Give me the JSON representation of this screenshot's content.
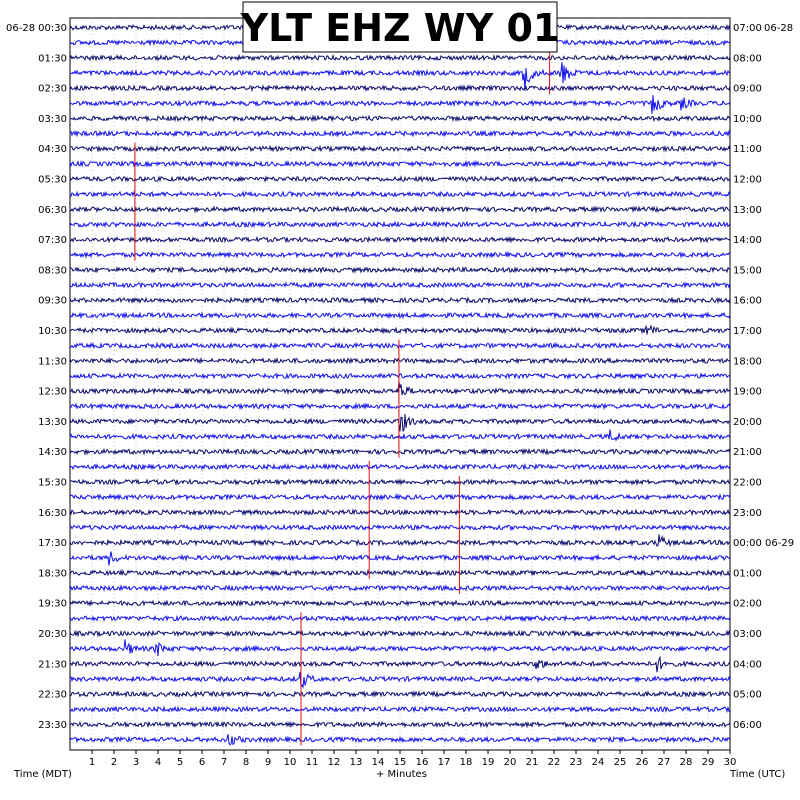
{
  "chart_data": {
    "type": "line",
    "title": "YLT EHZ WY 01",
    "left_date": "06-28",
    "right_date": "06-28",
    "xlabel": "+ Minutes",
    "left_axis_label": "Time (MDT)",
    "right_axis_label": "Time (UTC)",
    "xlim": [
      0,
      30
    ],
    "x_ticks": [
      "1",
      "2",
      "3",
      "4",
      "5",
      "6",
      "7",
      "8",
      "9",
      "10",
      "11",
      "12",
      "13",
      "14",
      "15",
      "16",
      "17",
      "18",
      "19",
      "20",
      "21",
      "22",
      "23",
      "24",
      "25",
      "26",
      "27",
      "28",
      "29",
      "30"
    ],
    "traces_per_label": 2,
    "trace_colors": [
      "#0a0a6e",
      "#1010f0"
    ],
    "left_time_labels": [
      "00:30",
      "01:30",
      "02:30",
      "03:30",
      "04:30",
      "05:30",
      "06:30",
      "07:30",
      "08:30",
      "09:30",
      "10:30",
      "11:30",
      "12:30",
      "13:30",
      "14:30",
      "15:30",
      "16:30",
      "17:30",
      "18:30",
      "19:30",
      "20:30",
      "21:30",
      "22:30",
      "23:30"
    ],
    "right_time_labels": [
      "07:00",
      "08:00",
      "09:00",
      "10:00",
      "11:00",
      "12:00",
      "13:00",
      "14:00",
      "15:00",
      "16:00",
      "17:00",
      "18:00",
      "19:00",
      "20:00",
      "21:00",
      "22:00",
      "23:00",
      "00:00 06-29",
      "01:00",
      "02:00",
      "03:00",
      "04:00",
      "05:00",
      "06:00"
    ],
    "events": [
      {
        "trace": 3,
        "minute": 20.6,
        "amplitude": 22
      },
      {
        "trace": 3,
        "minute": 22.3,
        "amplitude": 16
      },
      {
        "trace": 5,
        "minute": 26.5,
        "amplitude": 12
      },
      {
        "trace": 5,
        "minute": 27.8,
        "amplitude": 6
      },
      {
        "trace": 20,
        "minute": 26.2,
        "amplitude": 8
      },
      {
        "trace": 24,
        "minute": 14.9,
        "amplitude": 12
      },
      {
        "trace": 26,
        "minute": 15.0,
        "amplitude": 14
      },
      {
        "trace": 27,
        "minute": 24.5,
        "amplitude": 7
      },
      {
        "trace": 34,
        "minute": 26.7,
        "amplitude": 9
      },
      {
        "trace": 35,
        "minute": 1.8,
        "amplitude": 6
      },
      {
        "trace": 41,
        "minute": 2.5,
        "amplitude": 8
      },
      {
        "trace": 41,
        "minute": 3.9,
        "amplitude": 8
      },
      {
        "trace": 42,
        "minute": 21.2,
        "amplitude": 6
      },
      {
        "trace": 42,
        "minute": 26.7,
        "amplitude": 7
      },
      {
        "trace": 43,
        "minute": 10.5,
        "amplitude": 9
      },
      {
        "trace": 47,
        "minute": 7.2,
        "amplitude": 7
      }
    ],
    "marker_lines": [
      {
        "minute": 2.95,
        "from_trace": 8,
        "to_trace": 15
      },
      {
        "minute": 21.8,
        "from_trace": 1,
        "to_trace": 4
      },
      {
        "minute": 14.95,
        "from_trace": 21,
        "to_trace": 28
      },
      {
        "minute": 13.6,
        "from_trace": 29,
        "to_trace": 36
      },
      {
        "minute": 17.7,
        "from_trace": 30,
        "to_trace": 37
      },
      {
        "minute": 10.5,
        "from_trace": 39,
        "to_trace": 47
      }
    ]
  }
}
